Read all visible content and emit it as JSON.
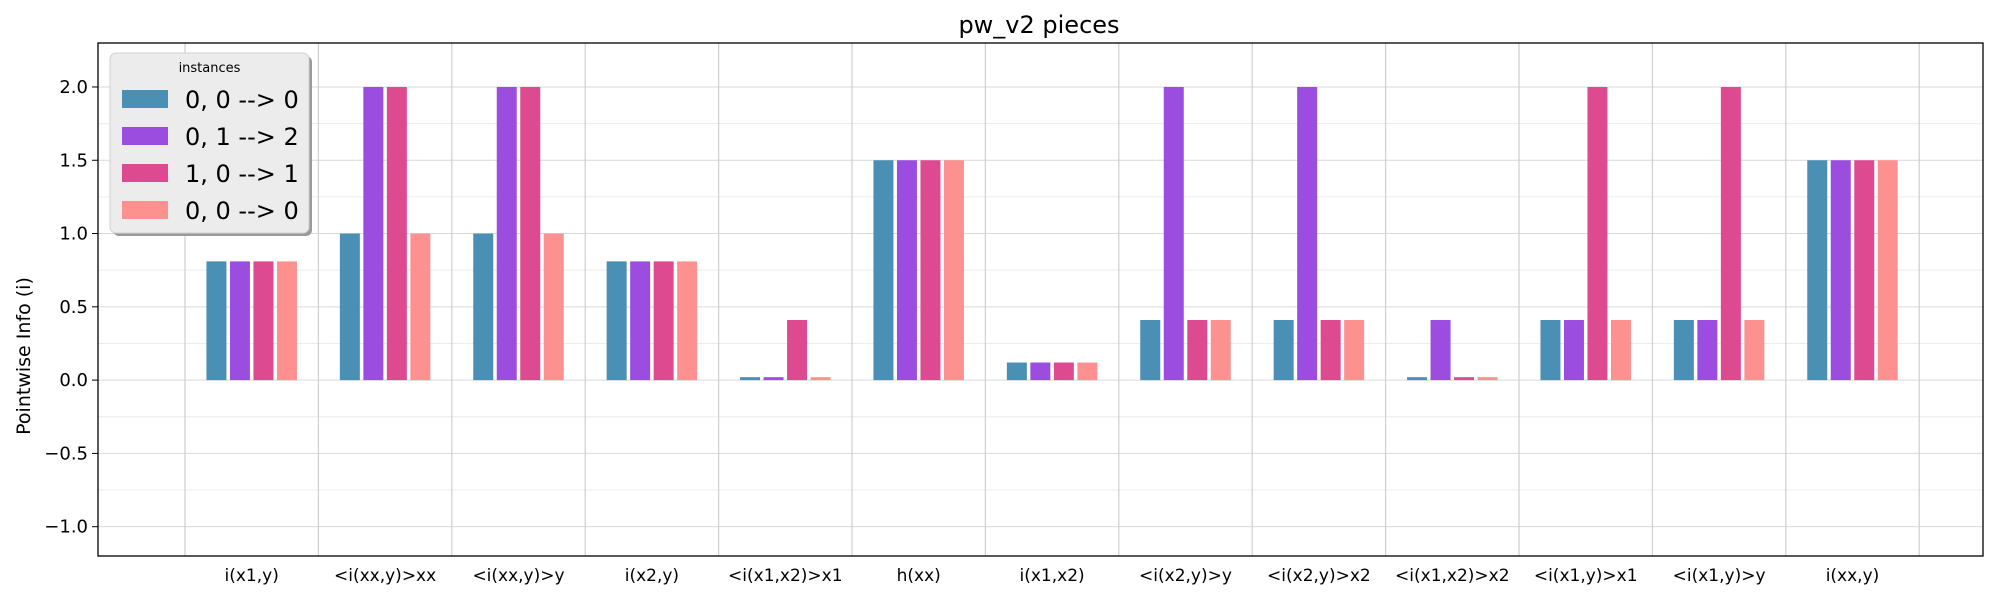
{
  "chart_data": {
    "type": "bar",
    "title": "pw_v2 pieces",
    "xlabel": "",
    "ylabel": "Pointwise Info (i)",
    "ylim": [
      -1.2,
      2.3
    ],
    "yticks": [
      "2.0",
      "1.5",
      "1.0",
      "0.5",
      "0.0",
      "−0.5",
      "−1.0"
    ],
    "ytick_values": [
      2.0,
      1.5,
      1.0,
      0.5,
      0.0,
      -0.5,
      -1.0
    ],
    "grid": true,
    "legend": {
      "title": "instances",
      "placement": "top-left"
    },
    "categories": [
      "i(x1,y)",
      "<i(xx,y)>xx",
      "<i(xx,y)>y",
      "i(x2,y)",
      "<i(x1,x2)>x1",
      "h(xx)",
      "i(x1,x2)",
      "<i(x2,y)>y",
      "<i(x2,y)>x2",
      "<i(x1,x2)>x2",
      "<i(x1,y)>x1",
      "<i(x1,y)>y",
      "i(xx,y)"
    ],
    "series": [
      {
        "name": "0, 0 --> 0",
        "color": "#4a90b5",
        "values": [
          0.81,
          1.0,
          1.0,
          0.81,
          0.02,
          1.5,
          0.12,
          0.41,
          0.41,
          0.02,
          0.41,
          0.41,
          1.5
        ]
      },
      {
        "name": "0, 1 --> 2",
        "color": "#9b4ddf",
        "values": [
          0.81,
          2.0,
          2.0,
          0.81,
          0.02,
          1.5,
          0.12,
          2.0,
          2.0,
          0.41,
          0.41,
          0.41,
          1.5
        ]
      },
      {
        "name": "1, 0 --> 1",
        "color": "#dd4a90",
        "values": [
          0.81,
          2.0,
          2.0,
          0.81,
          0.41,
          1.5,
          0.12,
          0.41,
          0.41,
          0.02,
          2.0,
          2.0,
          1.5
        ]
      },
      {
        "name": "0, 0 --> 0",
        "color": "#fd9190",
        "values": [
          0.81,
          1.0,
          1.0,
          0.81,
          0.02,
          1.5,
          0.12,
          0.41,
          0.41,
          0.02,
          0.41,
          0.41,
          1.5
        ]
      }
    ]
  }
}
